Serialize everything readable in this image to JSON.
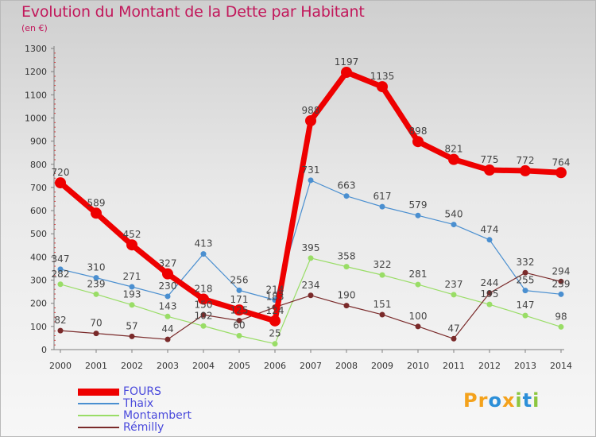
{
  "title": "Evolution du Montant de la Dette par Habitant",
  "unit_label": "(en €)",
  "logo": {
    "text": "Proxiti",
    "letters": [
      {
        "ch": "P",
        "color": "#f4a21c"
      },
      {
        "ch": "r",
        "color": "#f4a21c"
      },
      {
        "ch": "o",
        "color": "#2c8fd8"
      },
      {
        "ch": "x",
        "color": "#f4a21c"
      },
      {
        "ch": "i",
        "color": "#8cc63f"
      },
      {
        "ch": "t",
        "color": "#2c8fd8"
      },
      {
        "ch": "i",
        "color": "#8cc63f"
      }
    ]
  },
  "chart_data": {
    "type": "line",
    "title": "Evolution du Montant de la Dette par Habitant",
    "ylabel": "(en €)",
    "xlabel": "",
    "x": [
      "2000",
      "2001",
      "2002",
      "2003",
      "2004",
      "2005",
      "2006",
      "2007",
      "2008",
      "2009",
      "2010",
      "2011",
      "2012",
      "2013",
      "2014"
    ],
    "ylim": [
      0,
      1300
    ],
    "yticks": [
      0,
      100,
      200,
      300,
      400,
      500,
      600,
      700,
      800,
      900,
      1000,
      1100,
      1200,
      1300
    ],
    "grid": false,
    "legend_position": "bottom-left",
    "series": [
      {
        "name": "FOURS",
        "color": "#ee0000",
        "values": [
          720,
          589,
          452,
          327,
          218,
          171,
          124,
          988,
          1197,
          1135,
          898,
          821,
          775,
          772,
          764
        ],
        "labels": [
          "720",
          "589",
          "452",
          "327",
          "218",
          "171",
          "124",
          "988",
          "1197",
          "1135",
          "898",
          "821",
          "775",
          "772",
          "764"
        ]
      },
      {
        "name": "Thaix",
        "color": "#4a8fd0",
        "values": [
          347,
          310,
          271,
          230,
          413,
          256,
          214,
          731,
          663,
          617,
          579,
          540,
          474,
          255,
          239
        ],
        "labels": [
          "347",
          "310",
          "271",
          "230",
          "413",
          "256",
          "214",
          "731",
          "663",
          "617",
          "579",
          "540",
          "474",
          "255",
          "239"
        ]
      },
      {
        "name": "Montambert",
        "color": "#99dd66",
        "values": [
          282,
          239,
          193,
          143,
          102,
          60,
          25,
          395,
          358,
          322,
          281,
          237,
          195,
          147,
          98
        ],
        "labels": [
          "282",
          "239",
          "193",
          "143",
          "102",
          "60",
          "25",
          "395",
          "358",
          "322",
          "281",
          "237",
          "195",
          "147",
          "98"
        ]
      },
      {
        "name": "Rémilly",
        "color": "#7a2a2a",
        "values": [
          82,
          70,
          57,
          44,
          150,
          125,
          183,
          234,
          190,
          151,
          100,
          47,
          244,
          332,
          294
        ],
        "labels": [
          "82",
          "70",
          "57",
          "44",
          "150",
          "125",
          "183",
          "234",
          "190",
          "151",
          "100",
          "47",
          "244",
          "332",
          "294"
        ]
      }
    ]
  }
}
